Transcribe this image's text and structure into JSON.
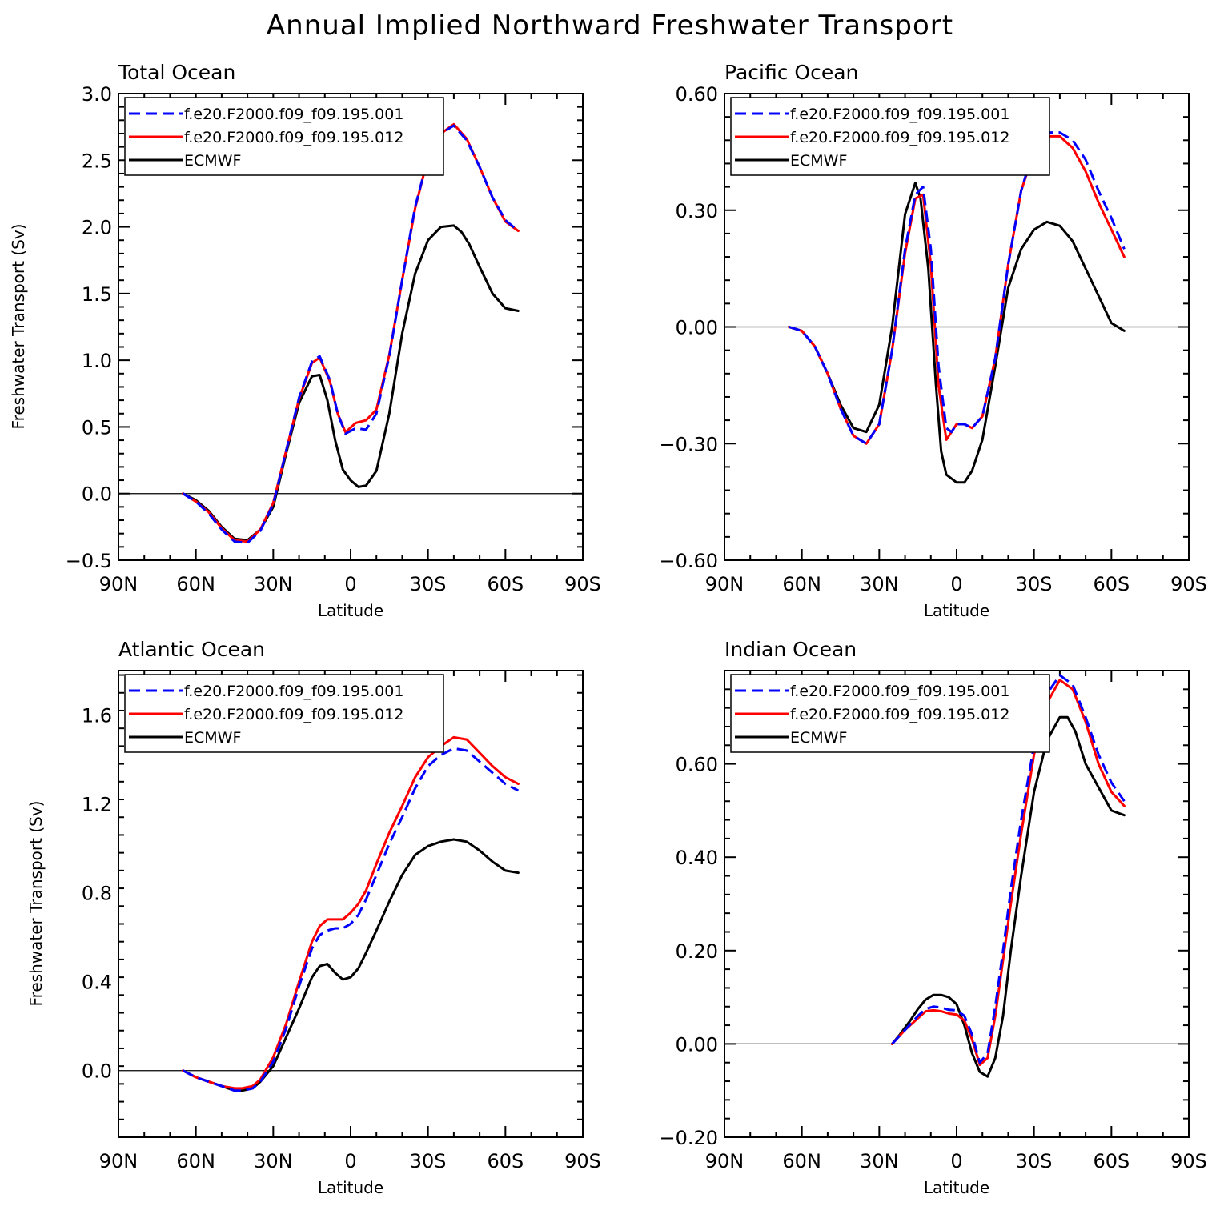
{
  "title": "Annual Implied Northward Freshwater Transport",
  "colors": {
    "series1": "#0000ff",
    "series2": "#ff0000",
    "series3": "#000000"
  },
  "chart_data": [
    {
      "type": "line",
      "title": "Total Ocean",
      "xlabel": "Latitude",
      "ylabel": "Freshwater Transport (Sv)",
      "xlim": [
        90,
        -90
      ],
      "ylim": [
        -0.5,
        3.0
      ],
      "xticks": [
        90,
        60,
        30,
        0,
        -30,
        -60,
        -90
      ],
      "xtick_labels": [
        "90N",
        "60N",
        "30N",
        "0",
        "30S",
        "60S",
        "90S"
      ],
      "yticks": [
        -0.5,
        0.0,
        0.5,
        1.0,
        1.5,
        2.0,
        2.5,
        3.0
      ],
      "ytick_labels": [
        "−0.5",
        "0.0",
        "0.5",
        "1.0",
        "1.5",
        "2.0",
        "2.5",
        "3.0"
      ],
      "legend": "top-left",
      "series": [
        {
          "name": "f.e20.F2000.f09_f09.195.001",
          "style": "dashed",
          "color": "#0000ff",
          "x": [
            65,
            60,
            55,
            50,
            45,
            40,
            35,
            30,
            25,
            20,
            15,
            12,
            8,
            5,
            2,
            -2,
            -6,
            -10,
            -15,
            -20,
            -25,
            -30,
            -35,
            -40,
            -45,
            -50,
            -55,
            -60,
            -65
          ],
          "y": [
            0.0,
            -0.06,
            -0.15,
            -0.27,
            -0.36,
            -0.37,
            -0.28,
            -0.08,
            0.32,
            0.72,
            0.99,
            1.03,
            0.85,
            0.6,
            0.45,
            0.49,
            0.48,
            0.6,
            1.03,
            1.6,
            2.15,
            2.52,
            2.7,
            2.76,
            2.65,
            2.45,
            2.22,
            2.05,
            1.97
          ]
        },
        {
          "name": "f.e20.F2000.f09_f09.195.012",
          "style": "solid",
          "color": "#ff0000",
          "x": [
            65,
            60,
            55,
            50,
            45,
            40,
            35,
            30,
            25,
            20,
            15,
            12,
            8,
            5,
            2,
            -2,
            -6,
            -10,
            -15,
            -20,
            -25,
            -30,
            -35,
            -40,
            -45,
            -50,
            -55,
            -60,
            -65
          ],
          "y": [
            0.0,
            -0.06,
            -0.14,
            -0.26,
            -0.35,
            -0.36,
            -0.27,
            -0.07,
            0.32,
            0.71,
            0.98,
            1.02,
            0.84,
            0.6,
            0.46,
            0.53,
            0.55,
            0.63,
            1.04,
            1.6,
            2.14,
            2.52,
            2.7,
            2.77,
            2.66,
            2.45,
            2.22,
            2.04,
            1.97
          ]
        },
        {
          "name": "ECMWF",
          "style": "solid",
          "color": "#000000",
          "x": [
            65,
            60,
            55,
            50,
            45,
            40,
            35,
            30,
            25,
            20,
            15,
            12,
            9,
            6,
            3,
            0,
            -3,
            -6,
            -10,
            -15,
            -20,
            -25,
            -30,
            -35,
            -40,
            -43,
            -46,
            -50,
            -55,
            -60,
            -65
          ],
          "y": [
            0.0,
            -0.05,
            -0.13,
            -0.25,
            -0.34,
            -0.35,
            -0.27,
            -0.1,
            0.3,
            0.68,
            0.88,
            0.89,
            0.7,
            0.4,
            0.18,
            0.1,
            0.05,
            0.06,
            0.17,
            0.6,
            1.2,
            1.65,
            1.9,
            2.0,
            2.01,
            1.96,
            1.87,
            1.7,
            1.5,
            1.39,
            1.37
          ]
        }
      ]
    },
    {
      "type": "line",
      "title": "Pacific Ocean",
      "xlabel": "Latitude",
      "ylabel": "",
      "xlim": [
        90,
        -90
      ],
      "ylim": [
        -0.6,
        0.6
      ],
      "xticks": [
        90,
        60,
        30,
        0,
        -30,
        -60,
        -90
      ],
      "xtick_labels": [
        "90N",
        "60N",
        "30N",
        "0",
        "30S",
        "60S",
        "90S"
      ],
      "yticks": [
        -0.6,
        -0.3,
        0.0,
        0.3,
        0.6
      ],
      "ytick_labels": [
        "−0.60",
        "−0.30",
        "0.00",
        "0.30",
        "0.60"
      ],
      "legend": "top-left",
      "series": [
        {
          "name": "f.e20.F2000.f09_f09.195.001",
          "style": "dashed",
          "color": "#0000ff",
          "x": [
            65,
            60,
            55,
            50,
            45,
            40,
            35,
            30,
            25,
            20,
            16,
            13,
            10,
            7,
            4,
            2,
            0,
            -3,
            -6,
            -10,
            -15,
            -20,
            -25,
            -30,
            -35,
            -40,
            -45,
            -50,
            -55,
            -60,
            -65
          ],
          "y": [
            0.0,
            -0.01,
            -0.05,
            -0.12,
            -0.21,
            -0.28,
            -0.3,
            -0.25,
            -0.06,
            0.2,
            0.34,
            0.36,
            0.2,
            -0.1,
            -0.26,
            -0.27,
            -0.25,
            -0.25,
            -0.26,
            -0.23,
            -0.08,
            0.16,
            0.35,
            0.46,
            0.5,
            0.5,
            0.48,
            0.43,
            0.35,
            0.28,
            0.2
          ]
        },
        {
          "name": "f.e20.F2000.f09_f09.195.012",
          "style": "solid",
          "color": "#ff0000",
          "x": [
            65,
            60,
            55,
            50,
            45,
            40,
            35,
            30,
            25,
            20,
            16,
            13,
            10,
            7,
            4,
            2,
            0,
            -3,
            -6,
            -10,
            -15,
            -20,
            -25,
            -30,
            -35,
            -40,
            -45,
            -50,
            -55,
            -60,
            -65
          ],
          "y": [
            0.0,
            -0.01,
            -0.05,
            -0.12,
            -0.21,
            -0.28,
            -0.3,
            -0.25,
            -0.06,
            0.19,
            0.33,
            0.34,
            0.16,
            -0.15,
            -0.29,
            -0.27,
            -0.25,
            -0.25,
            -0.26,
            -0.23,
            -0.08,
            0.16,
            0.35,
            0.45,
            0.49,
            0.49,
            0.46,
            0.4,
            0.32,
            0.25,
            0.18
          ]
        },
        {
          "name": "ECMWF",
          "style": "solid",
          "color": "#000000",
          "x": [
            65,
            60,
            55,
            50,
            45,
            40,
            35,
            30,
            25,
            20,
            16,
            14,
            11,
            8,
            6,
            4,
            0,
            -3,
            -6,
            -10,
            -15,
            -20,
            -25,
            -30,
            -35,
            -40,
            -45,
            -50,
            -55,
            -60,
            -65
          ],
          "y": [
            0.0,
            -0.01,
            -0.05,
            -0.12,
            -0.2,
            -0.26,
            -0.27,
            -0.2,
            0.0,
            0.29,
            0.37,
            0.33,
            0.15,
            -0.15,
            -0.32,
            -0.38,
            -0.4,
            -0.4,
            -0.37,
            -0.29,
            -0.1,
            0.1,
            0.2,
            0.25,
            0.27,
            0.26,
            0.22,
            0.15,
            0.08,
            0.01,
            -0.01
          ]
        }
      ]
    },
    {
      "type": "line",
      "title": "Atlantic Ocean",
      "xlabel": "Latitude",
      "ylabel": "Freshwater Transport (Sv)",
      "xlim": [
        90,
        -90
      ],
      "ylim": [
        -0.3,
        1.8
      ],
      "xticks": [
        90,
        60,
        30,
        0,
        -30,
        -60,
        -90
      ],
      "xtick_labels": [
        "90N",
        "60N",
        "30N",
        "0",
        "30S",
        "60S",
        "90S"
      ],
      "yticks": [
        0.0,
        0.4,
        0.8,
        1.2,
        1.6
      ],
      "ytick_labels": [
        "0.0",
        "0.4",
        "0.8",
        "1.2",
        "1.6"
      ],
      "legend": "top-left",
      "series": [
        {
          "name": "f.e20.F2000.f09_f09.195.001",
          "style": "dashed",
          "color": "#0000ff",
          "x": [
            65,
            60,
            55,
            50,
            45,
            42,
            38,
            35,
            30,
            25,
            20,
            15,
            12,
            9,
            6,
            3,
            0,
            -3,
            -6,
            -10,
            -15,
            -20,
            -25,
            -30,
            -35,
            -40,
            -45,
            -50,
            -55,
            -60,
            -65
          ],
          "y": [
            0.0,
            -0.03,
            -0.05,
            -0.07,
            -0.09,
            -0.09,
            -0.08,
            -0.05,
            0.04,
            0.19,
            0.38,
            0.55,
            0.61,
            0.63,
            0.64,
            0.64,
            0.66,
            0.7,
            0.77,
            0.88,
            1.02,
            1.14,
            1.27,
            1.37,
            1.42,
            1.45,
            1.44,
            1.39,
            1.34,
            1.29,
            1.26
          ]
        },
        {
          "name": "f.e20.F2000.f09_f09.195.012",
          "style": "solid",
          "color": "#ff0000",
          "x": [
            65,
            60,
            55,
            50,
            45,
            42,
            38,
            35,
            30,
            25,
            20,
            15,
            12,
            9,
            6,
            3,
            0,
            -3,
            -6,
            -10,
            -15,
            -20,
            -25,
            -30,
            -35,
            -40,
            -45,
            -50,
            -55,
            -60,
            -65
          ],
          "y": [
            0.0,
            -0.03,
            -0.05,
            -0.07,
            -0.08,
            -0.08,
            -0.07,
            -0.04,
            0.06,
            0.21,
            0.4,
            0.58,
            0.65,
            0.68,
            0.68,
            0.68,
            0.71,
            0.75,
            0.81,
            0.93,
            1.07,
            1.19,
            1.32,
            1.41,
            1.46,
            1.5,
            1.49,
            1.43,
            1.37,
            1.32,
            1.29
          ]
        },
        {
          "name": "ECMWF",
          "style": "solid",
          "color": "#000000",
          "x": [
            65,
            60,
            55,
            50,
            45,
            42,
            38,
            35,
            30,
            25,
            20,
            15,
            12,
            9,
            6,
            3,
            0,
            -3,
            -6,
            -10,
            -15,
            -20,
            -25,
            -30,
            -35,
            -40,
            -45,
            -50,
            -55,
            -60,
            -65
          ],
          "y": [
            0.0,
            -0.03,
            -0.05,
            -0.07,
            -0.09,
            -0.09,
            -0.08,
            -0.05,
            0.02,
            0.15,
            0.28,
            0.42,
            0.47,
            0.48,
            0.44,
            0.41,
            0.42,
            0.46,
            0.53,
            0.63,
            0.76,
            0.88,
            0.97,
            1.01,
            1.03,
            1.04,
            1.03,
            0.99,
            0.94,
            0.9,
            0.89
          ]
        }
      ]
    },
    {
      "type": "line",
      "title": "Indian Ocean",
      "xlabel": "Latitude",
      "ylabel": "",
      "xlim": [
        90,
        -90
      ],
      "ylim": [
        -0.2,
        0.8
      ],
      "xticks": [
        90,
        60,
        30,
        0,
        -30,
        -60,
        -90
      ],
      "xtick_labels": [
        "90N",
        "60N",
        "30N",
        "0",
        "30S",
        "60S",
        "90S"
      ],
      "yticks": [
        -0.2,
        0.0,
        0.2,
        0.4,
        0.6
      ],
      "ytick_labels": [
        "−0.20",
        "0.00",
        "0.20",
        "0.40",
        "0.60"
      ],
      "legend": "top-left",
      "series": [
        {
          "name": "f.e20.F2000.f09_f09.195.001",
          "style": "dashed",
          "color": "#0000ff",
          "x": [
            25,
            20,
            15,
            12,
            9,
            6,
            3,
            0,
            -3,
            -6,
            -9,
            -12,
            -15,
            -18,
            -21,
            -25,
            -30,
            -35,
            -40,
            -45,
            -50,
            -55,
            -60,
            -65
          ],
          "y": [
            0.0,
            0.03,
            0.06,
            0.075,
            0.08,
            0.078,
            0.073,
            0.072,
            0.06,
            0.02,
            -0.04,
            -0.02,
            0.08,
            0.2,
            0.33,
            0.48,
            0.64,
            0.75,
            0.79,
            0.77,
            0.7,
            0.62,
            0.56,
            0.52
          ]
        },
        {
          "name": "f.e20.F2000.f09_f09.195.012",
          "style": "solid",
          "color": "#ff0000",
          "x": [
            25,
            20,
            15,
            12,
            9,
            6,
            3,
            0,
            -3,
            -6,
            -9,
            -12,
            -15,
            -18,
            -21,
            -25,
            -30,
            -35,
            -40,
            -45,
            -50,
            -55,
            -60,
            -65
          ],
          "y": [
            0.0,
            0.03,
            0.055,
            0.07,
            0.072,
            0.07,
            0.065,
            0.063,
            0.05,
            0.01,
            -0.045,
            -0.03,
            0.06,
            0.18,
            0.3,
            0.45,
            0.62,
            0.73,
            0.78,
            0.76,
            0.69,
            0.6,
            0.54,
            0.51
          ]
        },
        {
          "name": "ECMWF",
          "style": "solid",
          "color": "#000000",
          "x": [
            25,
            22,
            18,
            15,
            12,
            9,
            6,
            3,
            0,
            -3,
            -6,
            -9,
            -12,
            -15,
            -18,
            -21,
            -25,
            -30,
            -35,
            -40,
            -43,
            -46,
            -50,
            -55,
            -60,
            -65
          ],
          "y": [
            0.0,
            0.02,
            0.05,
            0.075,
            0.095,
            0.105,
            0.105,
            0.1,
            0.085,
            0.04,
            -0.02,
            -0.06,
            -0.07,
            -0.03,
            0.06,
            0.2,
            0.36,
            0.54,
            0.65,
            0.7,
            0.7,
            0.67,
            0.6,
            0.55,
            0.5,
            0.49
          ]
        }
      ]
    }
  ]
}
